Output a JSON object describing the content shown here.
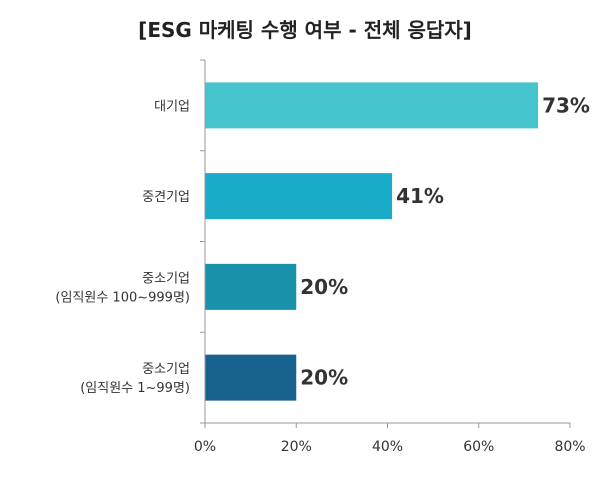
{
  "chart_data": {
    "type": "bar",
    "orientation": "horizontal",
    "title": "[ESG 마케팅 수행 여부  -  전체 응답자]",
    "categories": [
      [
        "대기업"
      ],
      [
        "중견기업"
      ],
      [
        "중소기업",
        "(임직원수 100~999명)"
      ],
      [
        "중소기업",
        "(임직원수 1~99명)"
      ]
    ],
    "values": [
      73,
      41,
      20,
      20
    ],
    "data_labels": [
      "73%",
      "41%",
      "20%",
      "20%"
    ],
    "bar_colors": [
      "#45C4CE",
      "#1AABC9",
      "#1991A8",
      "#17618F"
    ],
    "xlim": [
      0,
      80
    ],
    "xticks": [
      0,
      20,
      40,
      60,
      80
    ],
    "xtick_labels": [
      "0%",
      "20%",
      "40%",
      "60%",
      "80%"
    ],
    "xlabel": "",
    "ylabel": "",
    "grid": false,
    "axis_color": "#999999"
  }
}
